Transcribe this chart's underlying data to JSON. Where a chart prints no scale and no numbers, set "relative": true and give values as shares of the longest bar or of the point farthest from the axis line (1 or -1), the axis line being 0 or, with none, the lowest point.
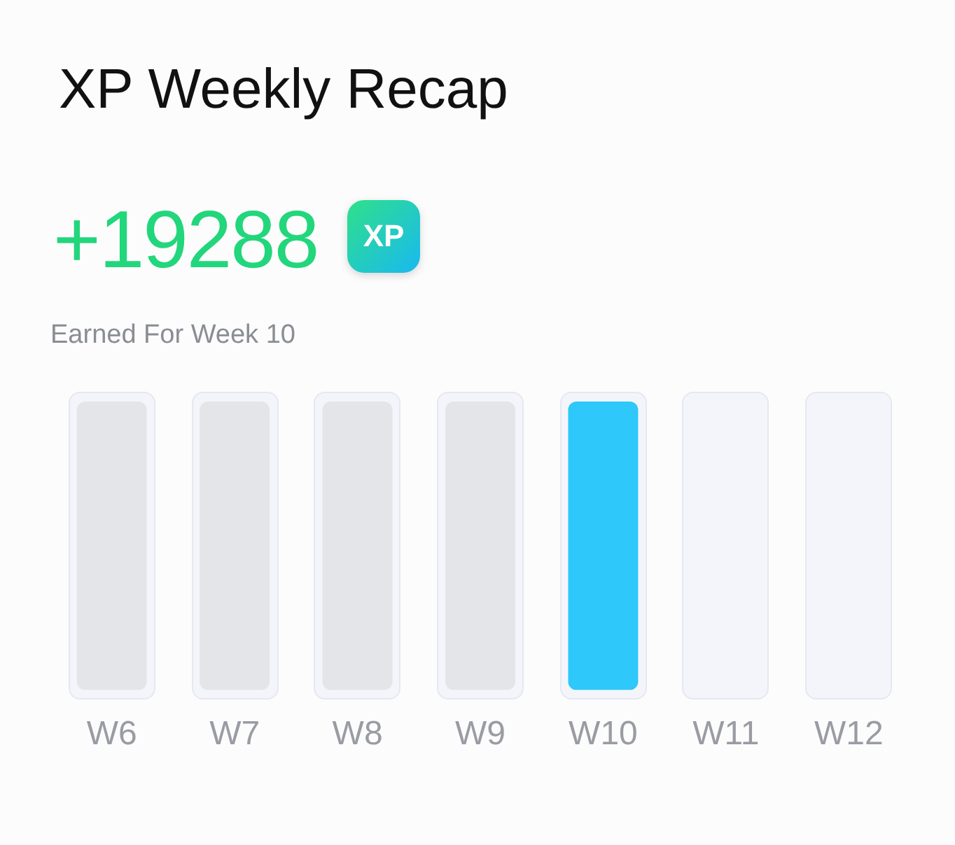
{
  "chart_data": {
    "type": "bar",
    "title": "XP Weekly Recap",
    "subtitle": "Earned For Week 10",
    "annotations": [
      "+19288",
      "XP"
    ],
    "categories": [
      "W6",
      "W7",
      "W8",
      "W9",
      "W10",
      "W11",
      "W12"
    ],
    "values": [
      1,
      1,
      1,
      1,
      1,
      null,
      null
    ],
    "colors": [
      "#e4e5e9",
      "#e4e5e9",
      "#e4e5e9",
      "#e4e5e9",
      "#2ec8fa",
      "#e4e5e9",
      "#e4e5e9"
    ],
    "relative": true,
    "grid": false,
    "legend": false
  }
}
